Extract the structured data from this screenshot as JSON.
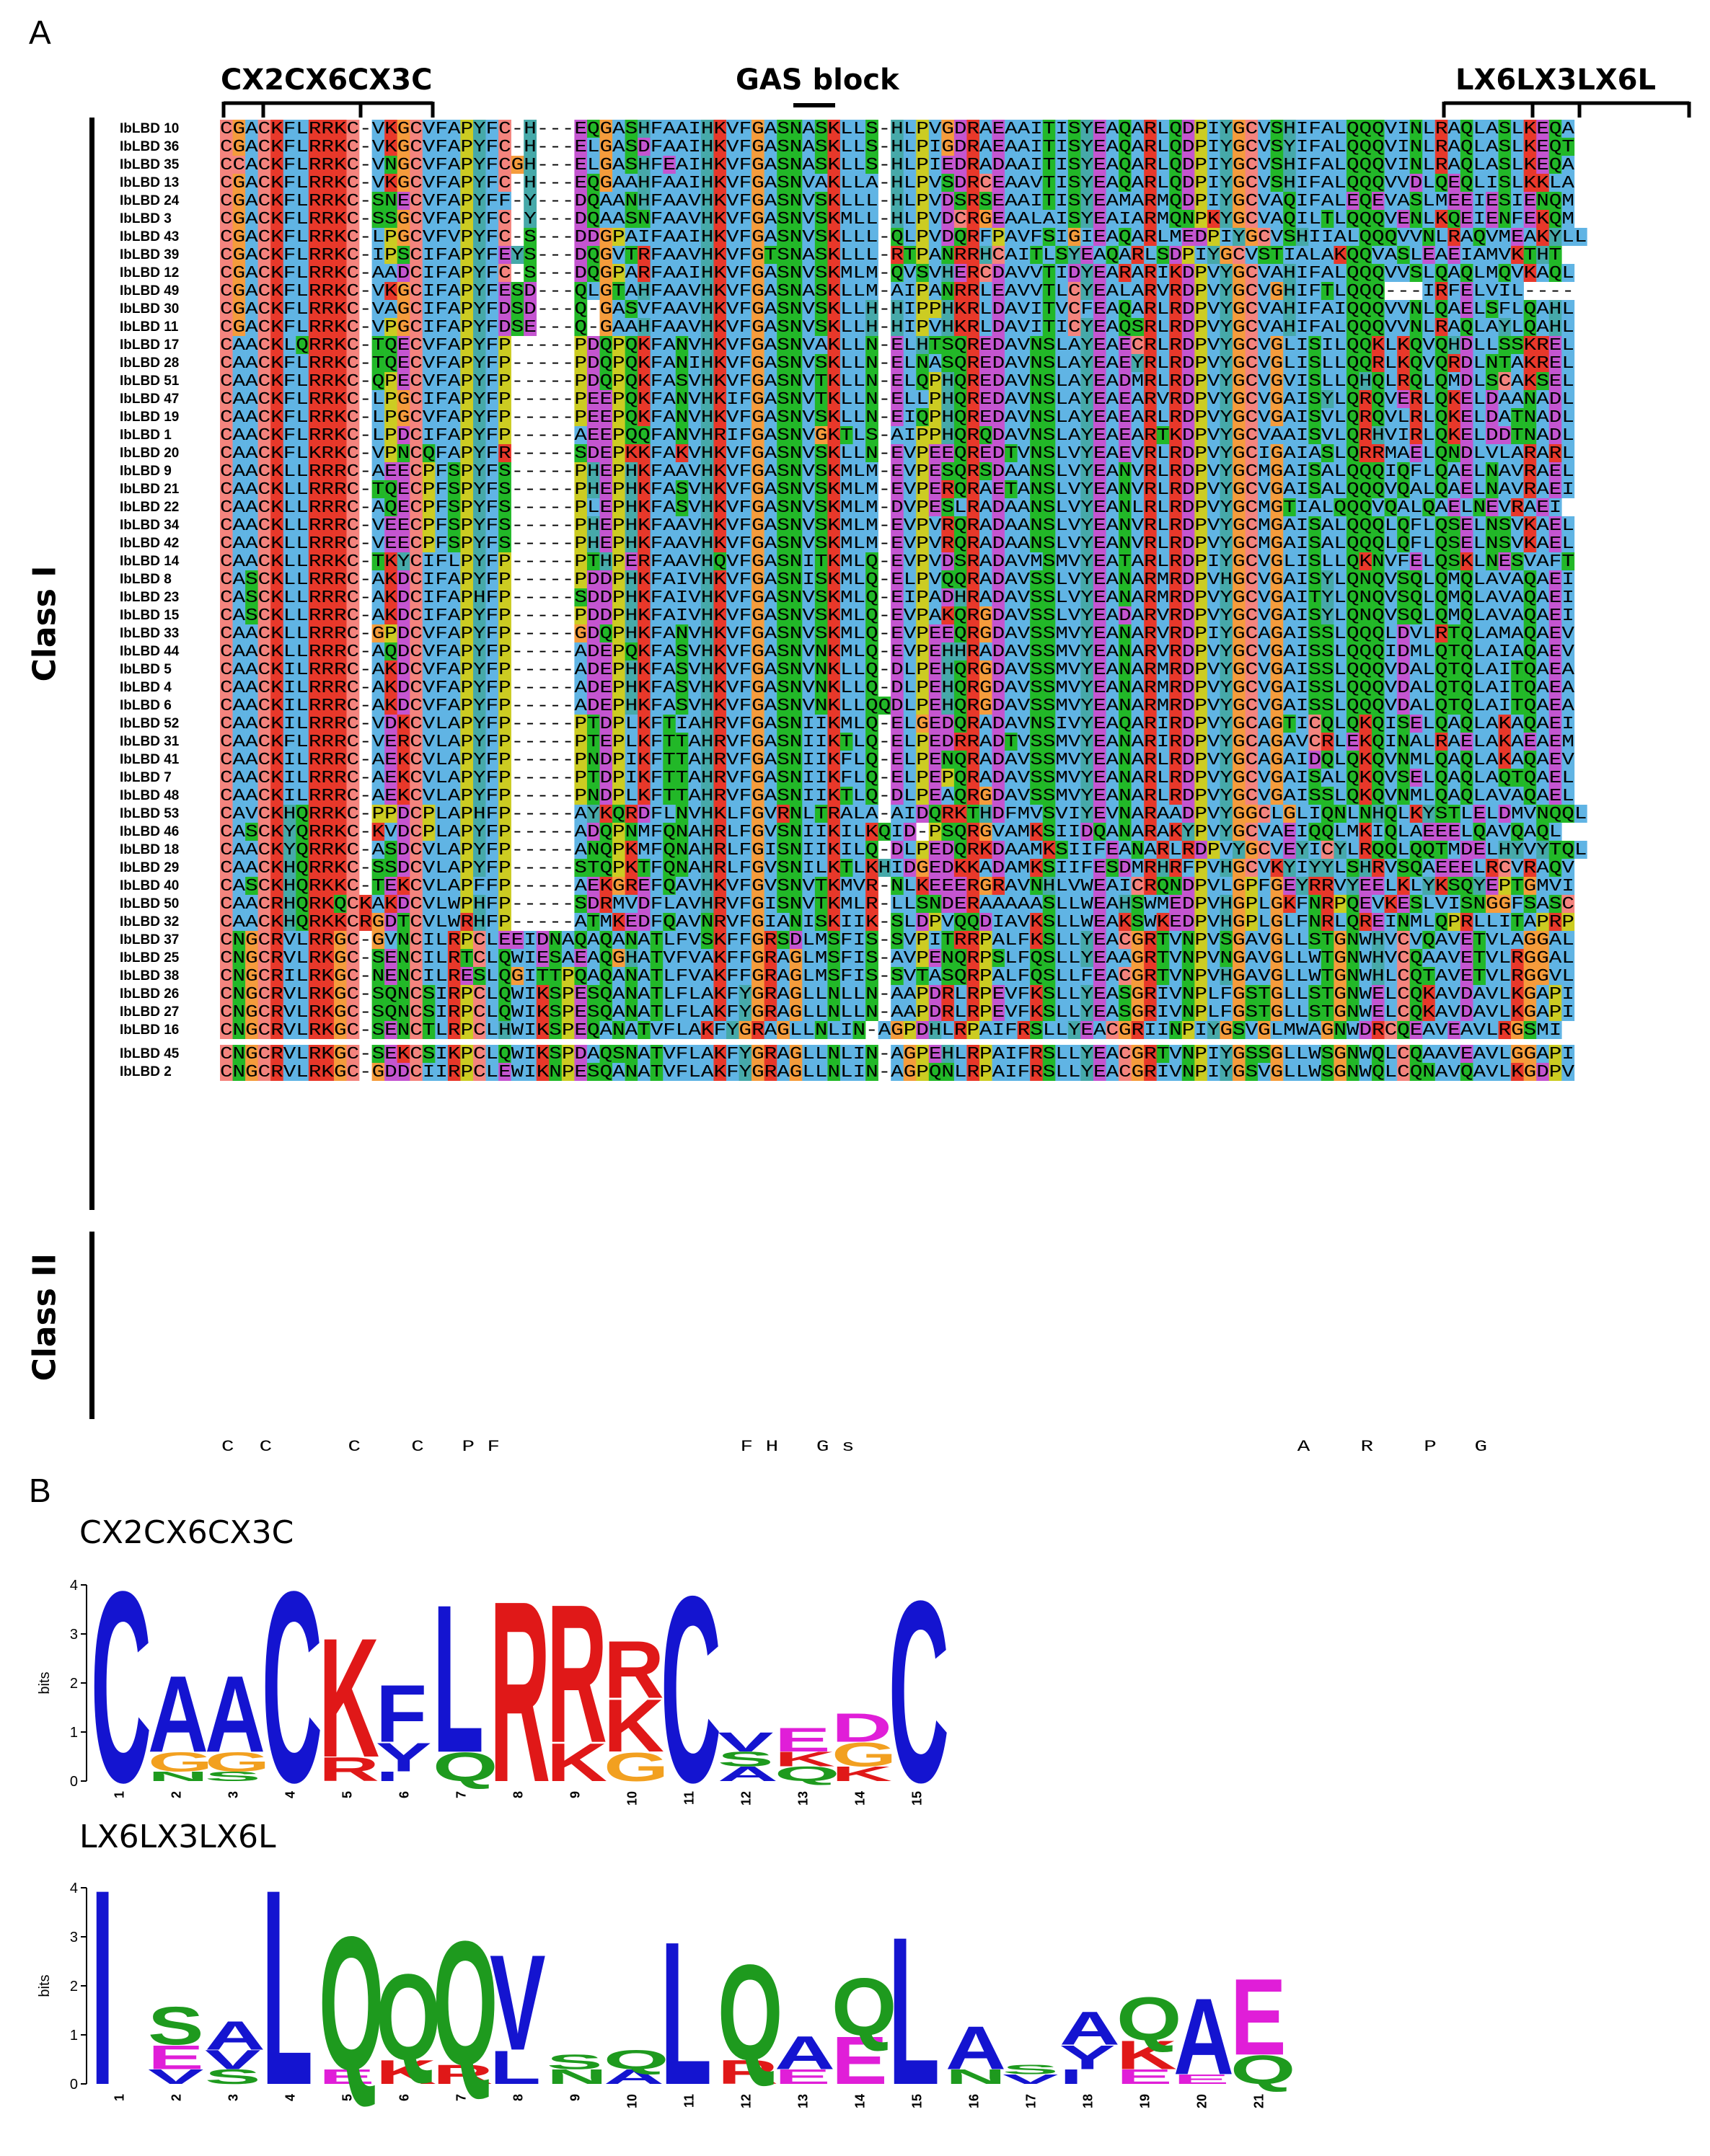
{
  "figure": {
    "panel_a": "A",
    "panel_b": "B",
    "motifs": {
      "m1": "CX2CX6CX3C",
      "m2": "GAS block",
      "m3": "LX6LX3LX6L"
    },
    "class_labels": {
      "class1": "Class I",
      "class2": "Class II"
    },
    "logo1_title": "CX2CX6CX3C",
    "logo2_title": "LX6LX3LX6L",
    "bits_label": "bits",
    "consensus_line": "C  C      C    C   P F                   F H   G s                                   A    R    P   G"
  },
  "colors": {
    "C": "#f4847e",
    "K": "#e8382a",
    "R": "#e8382a",
    "hydrophobic": "#60b4e4",
    "G": "#f59c3c",
    "N": "#22b828",
    "S": "#22b828",
    "T": "#22b828",
    "Q": "#22b828",
    "P": "#cccc22",
    "Y": "#46a9a9",
    "H": "#46a9a9",
    "E": "#c455d0",
    "D": "#c455d0",
    "logo_blue": "#1414d0",
    "logo_green": "#1e9a1e",
    "logo_red": "#e01818",
    "logo_orange": "#f2a020",
    "logo_magenta": "#e01ed8"
  },
  "alignment": [
    {
      "name": "IbLBD 10",
      "seq": "CGACKFLRRKC-VKGCVFAPYFC-H---EQGASHFAAIHKVFGASNASKLLS-HLPVGDRAEAAITISYEAQARLQDPIYGCVSHIFALQQQVINLRAQLASLKEQA"
    },
    {
      "name": "IbLBD 36",
      "seq": "CGACKFLRRKC-VKGCVFAPYFC-H---ELGASDFAAIHKVFGASNASKLLS-HLPIGDRAEAAITISYEAQARLQDPIYGCVSYIFALQQQVINLRAQLASLKEQT"
    },
    {
      "name": "IbLBD 35",
      "seq": "CCACKFLRRKC-VNGCVFAPYFCGH---ELGASHFEAIHKVFGASNASKLLS-HLPIEDRADAAITISYEAQARLQDPIYGCVSHIFALQQQVINLRAQLASLKEQA"
    },
    {
      "name": "IbLBD 13",
      "seq": "CGACKFLRRKC-VKGCVFAPYFC-H---EQGAAHFAAIHKVFGASNVAKLLA-HLPVSDRCEAAVTISYEAQARLQDPIYGCVSHIFALQQQVVDLQEQLISLKKLA"
    },
    {
      "name": "IbLBD 24",
      "seq": "CGACKFLRRKC-SNECVFAPYFF-Y---DQAANHFAAVHKVFGASNVSKLLL-HLPVDSRSEAAITISYEAMARMQDPIYGCVAQIFALEQEVASLMEEIESIENQM"
    },
    {
      "name": "IbLBD 3",
      "seq": "CGACKFLRRKC-SSGCVFAPYFC-Y---DQAASNFAAVHKVFGASNVSKMLL-HLPVDCRGEAALAISYEAIARMQNPKYGCVAQILTLQQQVENLKQEIENFEKQM"
    },
    {
      "name": "IbLBD 43",
      "seq": "CGACKFLRRKC-LPGCVFVPYFC-S---DDGPAIFAAIHKVFGASNVSKLLL-QLPVDQRFPAVFSIGIEAQARLMEDPIYGCVSHIIALQQQVVNLRAQVMEAKYLL"
    },
    {
      "name": "IbLBD 39",
      "seq": "CGACKFLRRKC-IPSCIFAPYFEYS---DQGVTRFAAVHKVFGTSNASKLLL-RTPANRRHCAITLSYEAQARLSDPIYGCVSTIALAKQQVASLEAEIAMVKTHT"
    },
    {
      "name": "IbLBD 12",
      "seq": "CGACKFLRRKC-AADCIFAPYFC-S---DQGPARFAAIHKVFGASNVSKMLM-QVSVHERCDAVVTIDYEARARIKDPVYGCVAHIFALQQQVVSLQAQLMQVKAQL"
    },
    {
      "name": "IbLBD 49",
      "seq": "CGACKFLRRKC-VKGCIFAPYFESD---QLGTAHFAAVHKVFGASNASKLLM-AIPANRRLEAVVTLCYEALARVRDPVYGCVGHIFTLQQQ---IRFELVIL----"
    },
    {
      "name": "IbLBD 30",
      "seq": "CGACKFLRRKC-VAGCIFAPYFDSD---Q-GASVFAAVHKVFGASNVSKLLH-HIPPHKRLDAVITVCFEAQARLRDPVYGCVAHIFAIQQQVVNLQAELSFLQAHL"
    },
    {
      "name": "IbLBD 11",
      "seq": "CGACKFLRRKC-VPGCIFAPYFDSE---Q-GAAHFAAVHKVFGASNVSKLLH-HIPVHKRLDAVITICYEAQSRLRDPVYGCVAHIFALQQQVVNLRAQLAYLQAHL"
    },
    {
      "name": "IbLBD 17",
      "seq": "CAACKLQRRKC-TQECVFAPYFP-----PDQPQKFANVHKVFGASNVAKLLN-ELHTSQREDAVNSLAYEAECRLRDPVYGCVGLISILQQKLKQVQHDLLSSKREL"
    },
    {
      "name": "IbLBD 28",
      "seq": "CAACKFLRRKC-TQECVFAPYFP-----PDQPQKFANIHKVFGASNVSKLLN-ELNASQREDAVNSLAYEAEYRLRDPVYGCVGLISLLQQRLKQVQRDLNTAKREL"
    },
    {
      "name": "IbLBD 51",
      "seq": "CAACKFLRRKC-QPECVFAPYFP-----PDQPQKFASVHKVFGASNVTKLLN-ELQPHQREDAVNSLAYEADMRLRDPVYGCVGVISLLQHQLRQLQMDLSCAKSEL"
    },
    {
      "name": "IbLBD 47",
      "seq": "CAACKFLRRKC-LPGCIFAPYFP-----PEEPQKFANVHKIFGASNVTKLLN-ELLPHQREDAVNSLAYEAEARVRDPVYGCVGAISYLQRQVERLQKELDAANADL"
    },
    {
      "name": "IbLBD 19",
      "seq": "CAACKFLRRKC-LPGCVFAPYFP-----PEEPQKFANVHKVFGASNVSKLLN-EIQPHQREDAVNSLAYEAEARLRDPVYGCVGAISVLQRQVLRLQKELDATNADL"
    },
    {
      "name": "IbLBD 1",
      "seq": "CAACKFLRRKC-LPDCIFAPYFP-----AEEPQQFANVHRIFGASNVGKTLS-AIPPHQRQDAVNSLAYEAEARTKDPVYGCVAAISVLQRHVIRLQKELDDTNADL"
    },
    {
      "name": "IbLBD 20",
      "seq": "CAACKFLKRKC-VPNCQFAPYFR-----SDEPKKFAKVHKVFGASNVSKLLN-EVPEEQREDTVNSLVYEAEVRLRDPVYGCIGAIASLQRRMAELQNDLVLARARL"
    },
    {
      "name": "IbLBD 9",
      "seq": "CAACKLLRRRC-AEECPFSPYFS-----PHEPHKFAAVHKVFGASNVSKMLM-EVPESQRSDAANSLVYEANVRLRDPVYGCMGAISALQQQIQFLQAELNAVRAEL"
    },
    {
      "name": "IbLBD 21",
      "seq": "CAACKLLRRRC-TQECPFSPYFS-----PHEPHKFASVHKVFGASNVSKMLM-EVPERQRAETANSLVYEANVRLRDPVYGCVGAISALQQQVQALQAELNAVRAEI"
    },
    {
      "name": "IbLBD 22",
      "seq": "CAACKLLRRRC-AQECPFSPYFS-----PLEPHKFASVHKVFGASNVSKMLM-DVPESLRADAANSLVYEANLRLRDPVYGCMGTIALQQQVQALQAELNEVRAEI"
    },
    {
      "name": "IbLBD 34",
      "seq": "CAACKLLRRRC-VEECPFSPYFS-----PHEPHKFAAVHKVFGASNVSKMLM-EVPVRQRADAANSLVYEANVRLRDPVYGCMGAISALQQQLQFLQSELNSVKAEL"
    },
    {
      "name": "IbLBD 42",
      "seq": "CAACKLLRRRC-VEECPFSPYFS-----PHEPHKFAAVHKVFGASNVSKMLM-EVPVRQRADAANSLVYEANVRLRDPVYGCMGAISALQQQLQFLQSELNSVKAEL"
    },
    {
      "name": "IbLBD 14",
      "seq": "CAACKLLRRKC-TKYCIFLPYFP-----PTHPERFAAVHQVFGASNITKMLQ-EVPVDSRADAVMSMVYEATARLRDPIYGCVGLISLLQKNVFELQSKLNESVAFT"
    },
    {
      "name": "IbLBD 8",
      "seq": "CASCKLLRRRC-AKDCIFAPYFP-----PDDPHKFAIVHKVFGASNISKMLQ-ELPVQQRADAVSSLVYEANARMRDPVHGCVGAISYLQNQVSQLQMQLAVAQAEI"
    },
    {
      "name": "IbLBD 23",
      "seq": "CASCKLLRRRC-AKDCIFAPHFP-----SDDPHKFAIVHKVFGASNVSKMLQ-EIPADHRADAVSSLVYEANARMRDPVYGCVGAITYLQNQVSQLQMQLAVAQAEI"
    },
    {
      "name": "IbLBD 15",
      "seq": "CASCKLLRRRC-AKDCIFAPYFP-----PDDPHKFAIVHKVFGASNVSKMLQ-EVPAKQRGDAVSSLVYEADARVRDPVYGCVGAISYLQNQVSQLQMQLAVAQAEI"
    },
    {
      "name": "IbLBD 33",
      "seq": "CAACKLLRRRC-GPDCVFAPYFP-----GDQPHKFANVHKVFGASNVSKMLQ-EVPEEQRGDAVSSMVYEANARVRDPIYGCAGAISSLQQQLDVLRTQLAMAQAEV"
    },
    {
      "name": "IbLBD 44",
      "seq": "CAACKLLRRRC-AQDCVFAPYFP-----ADEPQKFASVHKVFGASNVNKMLQ-EVPEHHRADAVSSMVYEANARVRDPVYGCVGAISSLQQQIDMLQTQLAIAQAEV"
    },
    {
      "name": "IbLBD 5",
      "seq": "CAACKILRRRC-AKDCVFAPYFP-----ADEPHKFASVHKVFGASNVNKLLQ-DLPEHQRGDAVSSMVYEANARMRDPVYGCVGAISSLQQQVDALQTQLAITQAEA"
    },
    {
      "name": "IbLBD 4",
      "seq": "CAACKILRRRC-AKDCVFAPYFP-----ADEPHKFASVHKVFGASNVNKLLQ-DLPEHQRGDAVSSMVYEANARMRDPVYGCVGAISSLQQQVDALQTQLAITQAEA"
    },
    {
      "name": "IbLBD 6",
      "seq": "CAACKILRRRC-AKDCVFAPYFP-----ADEPHKFASVHKVFGASNVNKLLQQDLPEHQRGDAVSSMVYEANARMRDPVYGCVGAISSLQQQVDALQTQLAITQAEA"
    },
    {
      "name": "IbLBD 52",
      "seq": "CAACKILRRRC-VDKCVLAPYFP-----PTDPLKFTIAHRVFGASNIIKMLQ-ELGEDQRADAVNSIVYEAQARIRDPVYGCAGTICQLQKQISELQAQLAKAQAEI"
    },
    {
      "name": "IbLBD 31",
      "seq": "CAACKFLRRRC-VERCVLAPYFP-----PTEPLKFTTAHRVFGASNIIKTLQ-ELPEDRRADTVSSMVYEANARIRDPVYGCAGAVCRLEKQINALRAELAKAEAEM"
    },
    {
      "name": "IbLBD 41",
      "seq": "CAACKILRRRC-AEKCVLAPYFP-----PNDPIKFTTAHRVFGASNIIKFLQ-ELPENQRADAVSSMVYEANARLRDPVYGCAGAIDQLQKQVNMLQAQLAKAQAEV"
    },
    {
      "name": "IbLBD 7",
      "seq": "CAACKILRRRC-AEKCVLAPYFP-----PTDPIKFTTAHRVFGASNIIKFLQ-ELPEPQRADAVSSMVYEANARLRDPVYGCVGAISALQKQVSELQAQLAQTQAEL"
    },
    {
      "name": "IbLBD 48",
      "seq": "CAACKILRRRC-AEKCVLAPYFP-----PNDPLKFTTAHRVFGASNIIKTLQ-DLPEAQRGDAVSSMVYEANARLRDPVYGCVGAISSLQKQVNMLQAQLAVAQAEL"
    },
    {
      "name": "IbLBD 53",
      "seq": "CAVCKHQRRKC-PPDCPLAPHFP-----AYKQRDFLNVHKLFGVRNLTRALA-AIDQRKTHDFMVSVIYEVNARAADPVYGGCLGLIQNLNHQLKYSTLELDMVNQQL"
    },
    {
      "name": "IbLBD 46",
      "seq": "CASCKYQRRKC-KVDCPLAPYFP-----ADQPNMFQNAHRLFGVSNIIKILKQID-PSQRGVAMKSIIDQANARAKYPVYGCVAEIQQLMKIQLAEEELQAVQAQL"
    },
    {
      "name": "IbLBD 18",
      "seq": "CAACKYQRRKC-ASDCVLAPYFP-----ANQPKMFQNAHRLFGISNIIKILQ-DLPEDQRKDAAMKSIIFEANARLRDPVYGCVEYICYLRQQLQQTMDELHYVYTQL"
    },
    {
      "name": "IbLBD 29",
      "seq": "CAACKHQRRKC-SSDCVLAPYFP-----STQPKTFQNAHRLFGVSNILKTLKHIDGEDKKADAMKSIIFESDMRHRFPVHGCVKYIYYLSHRVSQAEEELRCVRAQV"
    },
    {
      "name": "IbLBD 40",
      "seq": "CASCKHQRKKC-TEKCVLAPFFP-----AEKGREFQAVHKVFGVSNVTKMVR-NLKEEERGRAVNHLVWEAICRQNDPVLGPFGEYRRVYEELKLYKSQYEPTGMVI"
    },
    {
      "name": "IbLBD 50",
      "seq": "CAACRHQRKQCKAKDCVLWPHFP-----SDRMVDFLAVHRVFGISNVTKMLR-LLSNDERAAAAASLLWEAHSWMEDPVHGPLGKFNRPQEVKESLVISNGGFSASC"
    },
    {
      "name": "IbLBD 32",
      "seq": "CAACKHQRKKCRGDTCVLWRHFP-----ATMKEDFQAVNRVFGIANISKIIK-SLDPVQQDIAVKSLLWEAKSWKEDPVHGPLGLFNRLQREINMLQPRLLITAPRP"
    },
    {
      "name": "IbLBD 37",
      "seq": "CNGCRVLRRGC-GVNCILRPCLEEIDNAQAQANATLFVSKFFGRSDLMSFIS-SVPITRRPALFKSLLYEACGRTVNPVSGAVGLLSTGNWHVCVQAVETVLAGGAL"
    },
    {
      "name": "IbLBD 25",
      "seq": "CNGCRVLRKGC-SENCILRTCLQWIESAEAQGHATVFVAKFFGRAGLMSFIS-AVPENQRPSLFQSLLYEAAGRTVNPVNGAVGLLWTGNWHVCQAAVETVLRGGAL"
    },
    {
      "name": "IbLBD 38",
      "seq": "CNGCRILRKGC-NENCILRESLQGITTPQAQANATLFVAKFFGRAGLMSFIS-SVTASQRPALFQSLLFEACGRTVNPVHGAVGLLWTGNWHLCQTAVETVLRGGVL"
    },
    {
      "name": "IbLBD 26",
      "seq": "CNGCRVLRKGC-SQNCSIRPCLQWIKSPESQANATLFLAKFYGRAGLLNLLN-AAPDRLRPEVFKSLLYEASGRIVNPLFGSTGLLSTGNWELCQKAVDAVLKGAPI"
    },
    {
      "name": "IbLBD 27",
      "seq": "CNGCRVLRKGC-SQNCSIRPCLQWIKSPESQANATLFLAKFYGRAGLLNLLN-AAPDRLRPEVFKSLLYEASGRIVNPLFGSTGLLSTGNWELCQKAVDAVLKGAPI"
    },
    {
      "name": "IbLBD 16",
      "seq": "CNGCRVLRKGC-SENCTLRPCLHWIKSPEQANATVFLAKFYGRAGLLNLIN-AGPDHLRPAIFRSLLYEACGRIINPIYGSVGLMWAGNWDRCQEAVEAVLRGSMI"
    },
    {
      "name": "IbLBD 45",
      "seq": "CNGCRVLRKGC-SEKCSIKPCLQWIKSPDAQSNATVFLAKFYGRAGLLNLIN-AGPEHLRPAIFRSLLYEACGRTVNPIYGSSGLLWSGNWQLCQAAVEAVLGGAPI"
    },
    {
      "name": "IbLBD 2",
      "seq": "CNGCRVLRKGC-GDDCIIRPCLEWIKNPESQANATVFLAKFYGRAGLLNLIN-AGPQNLRPAIFRSLLYEACGRIVNPIYGSVGLLWSGNWQLCQNAVQAVLKGDPV"
    }
  ],
  "logo1": {
    "ylim": [
      0,
      4
    ],
    "yticks": [
      "0",
      "1",
      "2",
      "3",
      "4"
    ],
    "positions": [
      {
        "pos": "1",
        "stack": [
          {
            "l": "C",
            "b": 4.0,
            "c": "B"
          }
        ]
      },
      {
        "pos": "2",
        "stack": [
          {
            "l": "N",
            "b": 0.2,
            "c": "G"
          },
          {
            "l": "G",
            "b": 0.4,
            "c": "O"
          },
          {
            "l": "A",
            "b": 1.6,
            "c": "B"
          }
        ]
      },
      {
        "pos": "3",
        "stack": [
          {
            "l": "S",
            "b": 0.2,
            "c": "G"
          },
          {
            "l": "G",
            "b": 0.4,
            "c": "O"
          },
          {
            "l": "A",
            "b": 1.6,
            "c": "B"
          }
        ]
      },
      {
        "pos": "4",
        "stack": [
          {
            "l": "C",
            "b": 4.0,
            "c": "B"
          }
        ]
      },
      {
        "pos": "5",
        "stack": [
          {
            "l": "R",
            "b": 0.5,
            "c": "R"
          },
          {
            "l": "K",
            "b": 2.5,
            "c": "R"
          }
        ]
      },
      {
        "pos": "6",
        "stack": [
          {
            "l": "I",
            "b": 0.2,
            "c": "B"
          },
          {
            "l": "Y",
            "b": 0.6,
            "c": "B"
          },
          {
            "l": "F",
            "b": 1.2,
            "c": "B"
          }
        ]
      },
      {
        "pos": "7",
        "stack": [
          {
            "l": "Q",
            "b": 0.6,
            "c": "G"
          },
          {
            "l": "L",
            "b": 3.1,
            "c": "B"
          }
        ]
      },
      {
        "pos": "8",
        "stack": [
          {
            "l": "R",
            "b": 3.8,
            "c": "R"
          }
        ]
      },
      {
        "pos": "9",
        "stack": [
          {
            "l": "K",
            "b": 0.8,
            "c": "R"
          },
          {
            "l": "R",
            "b": 2.9,
            "c": "R"
          }
        ]
      },
      {
        "pos": "10",
        "stack": [
          {
            "l": "G",
            "b": 0.6,
            "c": "O"
          },
          {
            "l": "K",
            "b": 1.1,
            "c": "R"
          },
          {
            "l": "R",
            "b": 1.2,
            "c": "R"
          }
        ]
      },
      {
        "pos": "11",
        "stack": [
          {
            "l": "C",
            "b": 3.9,
            "c": "B"
          }
        ]
      },
      {
        "pos": "12",
        "stack": [
          {
            "l": "A",
            "b": 0.3,
            "c": "B"
          },
          {
            "l": "S",
            "b": 0.3,
            "c": "G"
          },
          {
            "l": "V",
            "b": 0.4,
            "c": "B"
          }
        ]
      },
      {
        "pos": "13",
        "stack": [
          {
            "l": "Q",
            "b": 0.3,
            "c": "G"
          },
          {
            "l": "K",
            "b": 0.3,
            "c": "R"
          },
          {
            "l": "E",
            "b": 0.5,
            "c": "M"
          }
        ]
      },
      {
        "pos": "14",
        "stack": [
          {
            "l": "K",
            "b": 0.3,
            "c": "R"
          },
          {
            "l": "G",
            "b": 0.5,
            "c": "O"
          },
          {
            "l": "D",
            "b": 0.6,
            "c": "M"
          }
        ]
      },
      {
        "pos": "15",
        "stack": [
          {
            "l": "C",
            "b": 3.8,
            "c": "B"
          }
        ]
      }
    ]
  },
  "logo2": {
    "ylim": [
      0,
      4
    ],
    "yticks": [
      "0",
      "1",
      "2",
      "3",
      "4"
    ],
    "positions": [
      {
        "pos": "1",
        "stack": [
          {
            "l": "I",
            "b": 4.1,
            "c": "B"
          }
        ]
      },
      {
        "pos": "2",
        "stack": [
          {
            "l": "V",
            "b": 0.3,
            "c": "B"
          },
          {
            "l": "E",
            "b": 0.5,
            "c": "M"
          },
          {
            "l": "S",
            "b": 0.8,
            "c": "G"
          }
        ]
      },
      {
        "pos": "3",
        "stack": [
          {
            "l": "S",
            "b": 0.3,
            "c": "G"
          },
          {
            "l": "V",
            "b": 0.4,
            "c": "B"
          },
          {
            "l": "A",
            "b": 0.6,
            "c": "B"
          }
        ]
      },
      {
        "pos": "4",
        "stack": [
          {
            "l": "L",
            "b": 4.1,
            "c": "B"
          }
        ]
      },
      {
        "pos": "5",
        "stack": [
          {
            "l": "E",
            "b": 0.3,
            "c": "M"
          },
          {
            "l": "Q",
            "b": 2.8,
            "c": "G"
          }
        ]
      },
      {
        "pos": "6",
        "stack": [
          {
            "l": "K",
            "b": 0.5,
            "c": "R"
          },
          {
            "l": "Q",
            "b": 1.8,
            "c": "G"
          }
        ]
      },
      {
        "pos": "7",
        "stack": [
          {
            "l": "R",
            "b": 0.4,
            "c": "R"
          },
          {
            "l": "Q",
            "b": 2.6,
            "c": "G"
          }
        ]
      },
      {
        "pos": "8",
        "stack": [
          {
            "l": "L",
            "b": 0.7,
            "c": "B"
          },
          {
            "l": "V",
            "b": 2.0,
            "c": "B"
          }
        ]
      },
      {
        "pos": "9",
        "stack": [
          {
            "l": "N",
            "b": 0.3,
            "c": "G"
          },
          {
            "l": "S",
            "b": 0.3,
            "c": "G"
          }
        ]
      },
      {
        "pos": "10",
        "stack": [
          {
            "l": "A",
            "b": 0.3,
            "c": "B"
          },
          {
            "l": "Q",
            "b": 0.4,
            "c": "G"
          }
        ]
      },
      {
        "pos": "11",
        "stack": [
          {
            "l": "L",
            "b": 3.0,
            "c": "B"
          }
        ]
      },
      {
        "pos": "12",
        "stack": [
          {
            "l": "R",
            "b": 0.5,
            "c": "R"
          },
          {
            "l": "Q",
            "b": 2.0,
            "c": "G"
          }
        ]
      },
      {
        "pos": "13",
        "stack": [
          {
            "l": "E",
            "b": 0.3,
            "c": "M"
          },
          {
            "l": "A",
            "b": 0.7,
            "c": "B"
          }
        ]
      },
      {
        "pos": "14",
        "stack": [
          {
            "l": "E",
            "b": 1.0,
            "c": "M"
          },
          {
            "l": "Q",
            "b": 1.2,
            "c": "G"
          }
        ]
      },
      {
        "pos": "15",
        "stack": [
          {
            "l": "L",
            "b": 3.1,
            "c": "B"
          }
        ]
      },
      {
        "pos": "16",
        "stack": [
          {
            "l": "N",
            "b": 0.3,
            "c": "G"
          },
          {
            "l": "A",
            "b": 0.9,
            "c": "B"
          }
        ]
      },
      {
        "pos": "17",
        "stack": [
          {
            "l": "V",
            "b": 0.2,
            "c": "B"
          },
          {
            "l": "S",
            "b": 0.2,
            "c": "G"
          }
        ]
      },
      {
        "pos": "18",
        "stack": [
          {
            "l": "I",
            "b": 0.3,
            "c": "B"
          },
          {
            "l": "Y",
            "b": 0.5,
            "c": "B"
          },
          {
            "l": "A",
            "b": 0.7,
            "c": "B"
          }
        ]
      },
      {
        "pos": "19",
        "stack": [
          {
            "l": "E",
            "b": 0.3,
            "c": "M"
          },
          {
            "l": "K",
            "b": 0.6,
            "c": "R"
          },
          {
            "l": "Q",
            "b": 0.9,
            "c": "G"
          }
        ]
      },
      {
        "pos": "20",
        "stack": [
          {
            "l": "E",
            "b": 0.2,
            "c": "M"
          },
          {
            "l": "A",
            "b": 1.6,
            "c": "B"
          }
        ]
      },
      {
        "pos": "21",
        "stack": [
          {
            "l": "Q",
            "b": 0.6,
            "c": "G"
          },
          {
            "l": "E",
            "b": 1.6,
            "c": "M"
          }
        ]
      }
    ]
  }
}
